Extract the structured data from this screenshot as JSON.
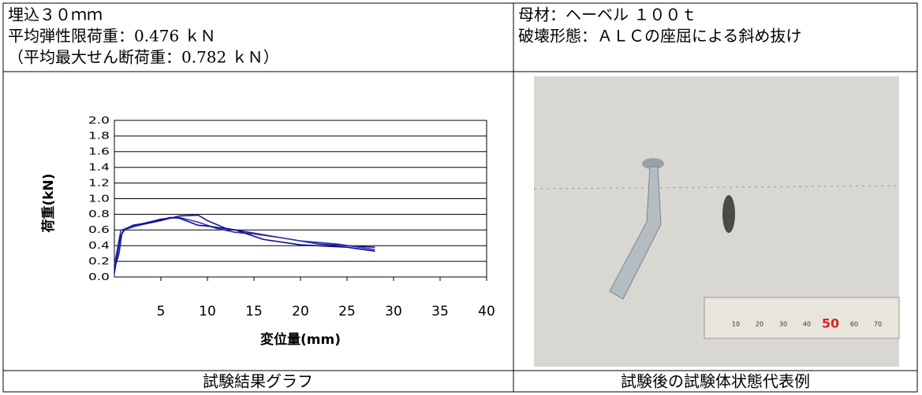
{
  "header": {
    "left": [
      "埋込３０ｍｍ",
      "平均弾性限荷重：0.476 ｋＮ",
      "（平均最大せん断荷重：0.782 ｋＮ）"
    ],
    "right": [
      "母材：ヘーベル １００ｔ",
      "破壊形態：ＡＬＣの座屈による斜め抜け"
    ]
  },
  "chart_data": {
    "type": "line",
    "x_label": "変位量(mm)",
    "y_label": "荷重(kN)",
    "xlim": [
      0,
      40
    ],
    "xticks": [
      5,
      10,
      15,
      20,
      25,
      30,
      35,
      40
    ],
    "ylim": [
      0,
      2
    ],
    "yticks": [
      {
        "value": 0,
        "label": "0.0"
      },
      {
        "value": 0.2,
        "label": "0.2"
      },
      {
        "value": 0.4,
        "label": "0.4"
      },
      {
        "value": 0.6,
        "label": "0.6"
      },
      {
        "value": 0.8,
        "label": "0.8"
      },
      {
        "value": 1,
        "label": "1.0"
      },
      {
        "value": 1.2,
        "label": "1.2"
      },
      {
        "value": 1.4,
        "label": "1.4"
      },
      {
        "value": 1.6,
        "label": "1.6"
      },
      {
        "value": 1.8,
        "label": "1.8"
      },
      {
        "value": 2,
        "label": "2.0"
      }
    ],
    "grid": true,
    "series": [
      {
        "color": "#1c1c8c",
        "x": [
          0,
          0.5,
          0.8,
          1.2,
          2,
          3,
          5,
          7,
          9,
          10,
          12,
          15,
          18,
          20,
          22,
          25,
          28
        ],
        "values": [
          0.1,
          0.3,
          0.55,
          0.62,
          0.64,
          0.67,
          0.72,
          0.78,
          0.79,
          0.72,
          0.62,
          0.56,
          0.5,
          0.46,
          0.42,
          0.4,
          0.38
        ]
      },
      {
        "color": "#3333b0",
        "x": [
          0,
          0.4,
          0.7,
          1.5,
          3,
          5,
          7,
          9,
          11,
          13,
          15,
          18,
          20,
          24,
          28
        ],
        "values": [
          0.15,
          0.4,
          0.6,
          0.62,
          0.68,
          0.74,
          0.76,
          0.7,
          0.62,
          0.57,
          0.55,
          0.5,
          0.46,
          0.42,
          0.35
        ]
      },
      {
        "color": "#0a0a9a",
        "x": [
          0,
          0.6,
          1,
          2,
          4,
          6,
          7,
          9,
          10,
          13,
          15,
          16,
          20,
          25,
          28
        ],
        "values": [
          0.05,
          0.5,
          0.6,
          0.66,
          0.7,
          0.76,
          0.75,
          0.66,
          0.65,
          0.6,
          0.52,
          0.48,
          0.41,
          0.38,
          0.33
        ]
      }
    ]
  },
  "photo": {
    "ruler_labels": [
      "10",
      "20",
      "30",
      "40",
      "50",
      "60",
      "70"
    ]
  },
  "captions": [
    "試験結果グラフ",
    "試験後の試験体状態代表例"
  ]
}
